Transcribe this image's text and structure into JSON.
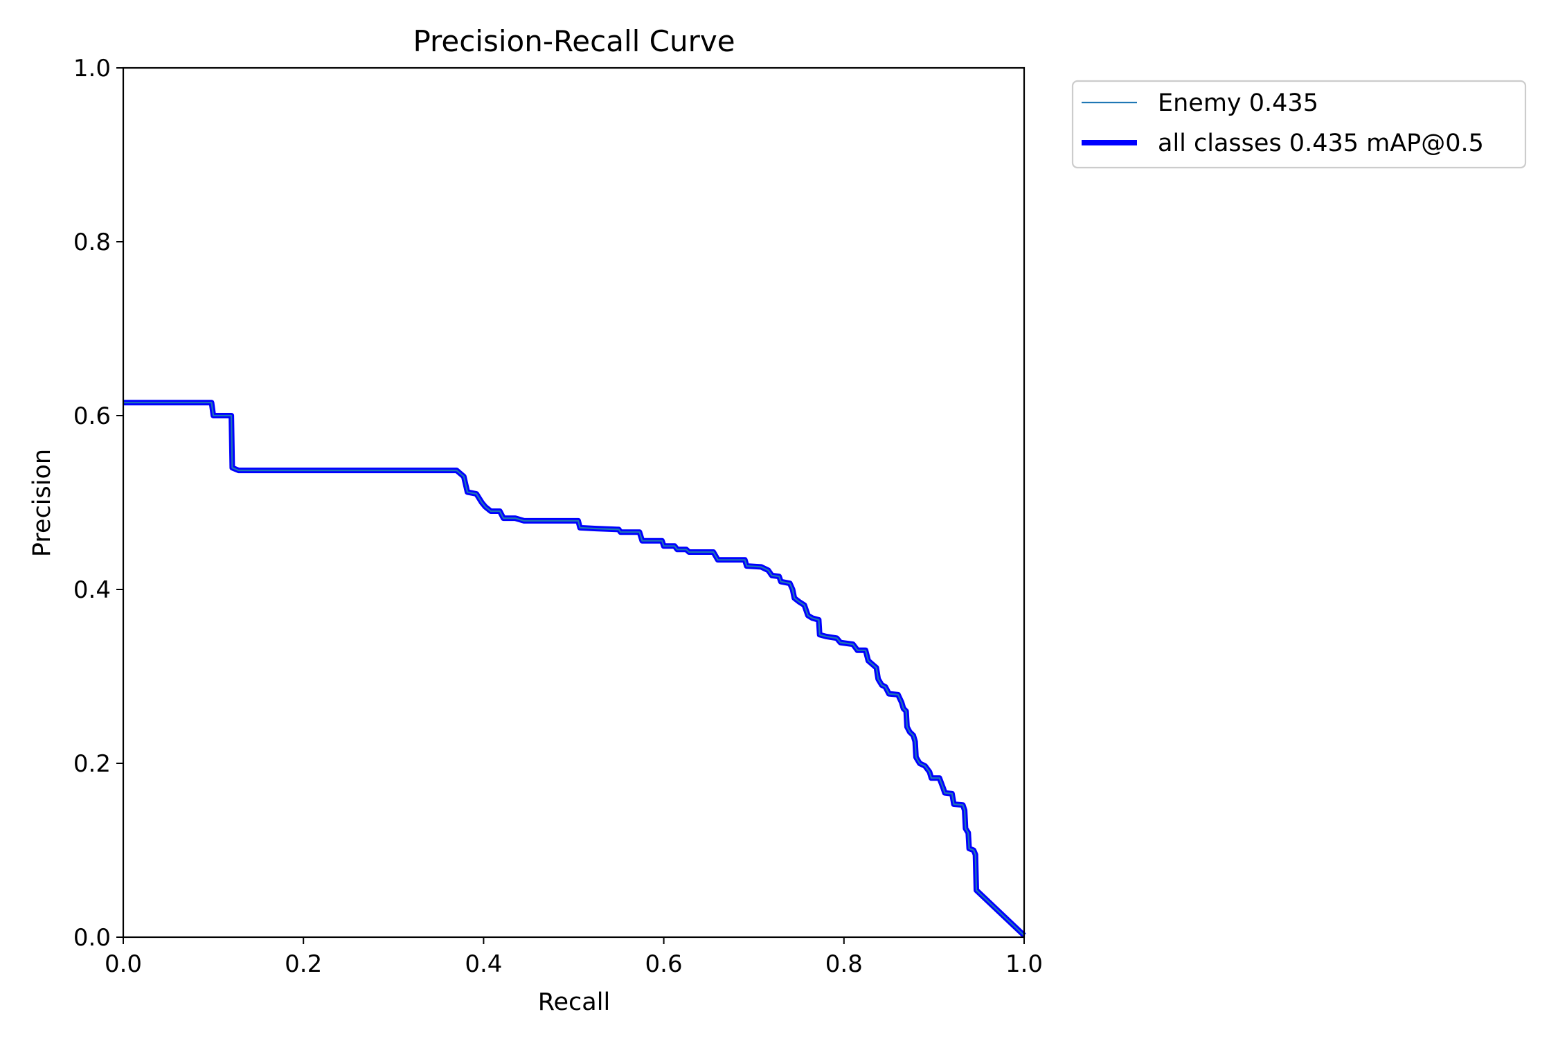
{
  "chart_data": {
    "type": "line",
    "title": "Precision-Recall Curve",
    "xlabel": "Recall",
    "ylabel": "Precision",
    "xlim": [
      0,
      1
    ],
    "ylim": [
      0,
      1
    ],
    "x_ticks": [
      "0.0",
      "0.2",
      "0.4",
      "0.6",
      "0.8",
      "1.0"
    ],
    "y_ticks": [
      "0.0",
      "0.2",
      "0.4",
      "0.6",
      "0.8",
      "1.0"
    ],
    "grid": false,
    "legend_position": "outside-top-right",
    "series": [
      {
        "name": "Enemy 0.435",
        "color": "#1f77b4",
        "style": "thin",
        "points": [
          [
            0.0,
            0.615
          ],
          [
            0.098,
            0.615
          ],
          [
            0.1,
            0.6
          ],
          [
            0.12,
            0.6
          ],
          [
            0.121,
            0.54
          ],
          [
            0.128,
            0.537
          ],
          [
            0.37,
            0.537
          ],
          [
            0.378,
            0.53
          ],
          [
            0.382,
            0.512
          ],
          [
            0.392,
            0.51
          ],
          [
            0.398,
            0.5
          ],
          [
            0.402,
            0.495
          ],
          [
            0.408,
            0.49
          ],
          [
            0.418,
            0.49
          ],
          [
            0.422,
            0.482
          ],
          [
            0.435,
            0.482
          ],
          [
            0.445,
            0.479
          ],
          [
            0.505,
            0.479
          ],
          [
            0.507,
            0.471
          ],
          [
            0.525,
            0.47
          ],
          [
            0.55,
            0.469
          ],
          [
            0.552,
            0.466
          ],
          [
            0.573,
            0.466
          ],
          [
            0.576,
            0.456
          ],
          [
            0.598,
            0.456
          ],
          [
            0.6,
            0.45
          ],
          [
            0.612,
            0.45
          ],
          [
            0.615,
            0.446
          ],
          [
            0.625,
            0.446
          ],
          [
            0.628,
            0.443
          ],
          [
            0.655,
            0.443
          ],
          [
            0.66,
            0.434
          ],
          [
            0.69,
            0.434
          ],
          [
            0.692,
            0.427
          ],
          [
            0.708,
            0.426
          ],
          [
            0.716,
            0.422
          ],
          [
            0.72,
            0.416
          ],
          [
            0.728,
            0.415
          ],
          [
            0.73,
            0.409
          ],
          [
            0.74,
            0.407
          ],
          [
            0.743,
            0.4
          ],
          [
            0.745,
            0.39
          ],
          [
            0.75,
            0.386
          ],
          [
            0.756,
            0.382
          ],
          [
            0.76,
            0.37
          ],
          [
            0.765,
            0.367
          ],
          [
            0.772,
            0.365
          ],
          [
            0.773,
            0.348
          ],
          [
            0.78,
            0.346
          ],
          [
            0.792,
            0.344
          ],
          [
            0.796,
            0.339
          ],
          [
            0.81,
            0.337
          ],
          [
            0.815,
            0.33
          ],
          [
            0.824,
            0.33
          ],
          [
            0.827,
            0.318
          ],
          [
            0.836,
            0.31
          ],
          [
            0.838,
            0.297
          ],
          [
            0.842,
            0.29
          ],
          [
            0.846,
            0.288
          ],
          [
            0.85,
            0.28
          ],
          [
            0.86,
            0.279
          ],
          [
            0.864,
            0.27
          ],
          [
            0.866,
            0.263
          ],
          [
            0.869,
            0.26
          ],
          [
            0.87,
            0.242
          ],
          [
            0.873,
            0.236
          ],
          [
            0.877,
            0.232
          ],
          [
            0.879,
            0.225
          ],
          [
            0.88,
            0.207
          ],
          [
            0.884,
            0.2
          ],
          [
            0.89,
            0.197
          ],
          [
            0.895,
            0.19
          ],
          [
            0.897,
            0.183
          ],
          [
            0.906,
            0.183
          ],
          [
            0.91,
            0.172
          ],
          [
            0.912,
            0.166
          ],
          [
            0.92,
            0.165
          ],
          [
            0.922,
            0.153
          ],
          [
            0.932,
            0.152
          ],
          [
            0.934,
            0.146
          ],
          [
            0.935,
            0.125
          ],
          [
            0.938,
            0.12
          ],
          [
            0.939,
            0.102
          ],
          [
            0.944,
            0.1
          ],
          [
            0.946,
            0.095
          ],
          [
            0.947,
            0.054
          ],
          [
            1.0,
            0.002
          ]
        ]
      },
      {
        "name": "all classes 0.435 mAP@0.5",
        "color": "#0000ff",
        "style": "thick",
        "same_as_series": 0
      }
    ]
  }
}
